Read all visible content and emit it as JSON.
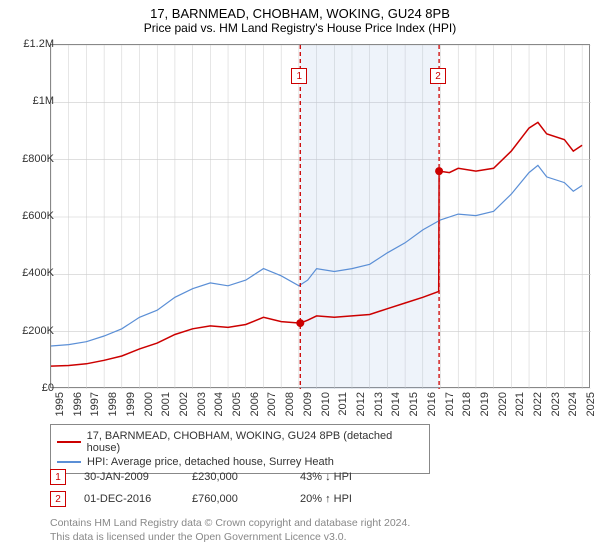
{
  "title": "17, BARNMEAD, CHOBHAM, WOKING, GU24 8PB",
  "subtitle": "Price paid vs. HM Land Registry's House Price Index (HPI)",
  "chart": {
    "type": "line",
    "background_color": "#ffffff",
    "grid_color": "#cccccc",
    "border_color": "#888888",
    "y_axis": {
      "min": 0,
      "max": 1200000,
      "step": 200000,
      "labels": [
        "£0",
        "£200K",
        "£400K",
        "£600K",
        "£800K",
        "£1M",
        "£1.2M"
      ]
    },
    "x_axis": {
      "min": 1995,
      "max": 2025.5,
      "ticks": [
        1995,
        1996,
        1997,
        1998,
        1999,
        2000,
        2001,
        2002,
        2003,
        2004,
        2005,
        2006,
        2007,
        2008,
        2009,
        2010,
        2011,
        2012,
        2013,
        2014,
        2015,
        2016,
        2017,
        2018,
        2019,
        2020,
        2021,
        2022,
        2023,
        2024,
        2025
      ]
    },
    "shaded_region": {
      "x_start": 2009.08,
      "x_end": 2016.92,
      "color": "rgba(160,190,230,0.18)"
    },
    "markers": [
      {
        "num": "1",
        "x": 2009.08,
        "y": 230000,
        "color": "#cc0000"
      },
      {
        "num": "2",
        "x": 2016.92,
        "y": 760000,
        "color": "#cc0000"
      }
    ],
    "series": [
      {
        "name": "property",
        "label": "17, BARNMEAD, CHOBHAM, WOKING, GU24 8PB (detached house)",
        "color": "#cc0000",
        "line_width": 1.5,
        "points": [
          [
            1995,
            80000
          ],
          [
            1996,
            82000
          ],
          [
            1997,
            88000
          ],
          [
            1998,
            100000
          ],
          [
            1999,
            115000
          ],
          [
            2000,
            140000
          ],
          [
            2001,
            160000
          ],
          [
            2002,
            190000
          ],
          [
            2003,
            210000
          ],
          [
            2004,
            220000
          ],
          [
            2005,
            215000
          ],
          [
            2006,
            225000
          ],
          [
            2007,
            250000
          ],
          [
            2008,
            235000
          ],
          [
            2009.08,
            230000
          ],
          [
            2009.5,
            240000
          ],
          [
            2010,
            255000
          ],
          [
            2011,
            250000
          ],
          [
            2012,
            255000
          ],
          [
            2013,
            260000
          ],
          [
            2014,
            280000
          ],
          [
            2015,
            300000
          ],
          [
            2016,
            320000
          ],
          [
            2016.9,
            340000
          ],
          [
            2016.92,
            760000
          ],
          [
            2017.5,
            755000
          ],
          [
            2018,
            770000
          ],
          [
            2019,
            760000
          ],
          [
            2020,
            770000
          ],
          [
            2021,
            830000
          ],
          [
            2022,
            910000
          ],
          [
            2022.5,
            930000
          ],
          [
            2023,
            890000
          ],
          [
            2024,
            870000
          ],
          [
            2024.5,
            830000
          ],
          [
            2025,
            850000
          ]
        ]
      },
      {
        "name": "hpi",
        "label": "HPI: Average price, detached house, Surrey Heath",
        "color": "#5b8fd6",
        "line_width": 1.2,
        "points": [
          [
            1995,
            150000
          ],
          [
            1996,
            155000
          ],
          [
            1997,
            165000
          ],
          [
            1998,
            185000
          ],
          [
            1999,
            210000
          ],
          [
            2000,
            250000
          ],
          [
            2001,
            275000
          ],
          [
            2002,
            320000
          ],
          [
            2003,
            350000
          ],
          [
            2004,
            370000
          ],
          [
            2005,
            360000
          ],
          [
            2006,
            380000
          ],
          [
            2007,
            420000
          ],
          [
            2008,
            395000
          ],
          [
            2009,
            360000
          ],
          [
            2009.5,
            380000
          ],
          [
            2010,
            420000
          ],
          [
            2011,
            410000
          ],
          [
            2012,
            420000
          ],
          [
            2013,
            435000
          ],
          [
            2014,
            475000
          ],
          [
            2015,
            510000
          ],
          [
            2016,
            555000
          ],
          [
            2017,
            590000
          ],
          [
            2018,
            610000
          ],
          [
            2019,
            605000
          ],
          [
            2020,
            620000
          ],
          [
            2021,
            680000
          ],
          [
            2022,
            755000
          ],
          [
            2022.5,
            780000
          ],
          [
            2023,
            740000
          ],
          [
            2024,
            720000
          ],
          [
            2024.5,
            690000
          ],
          [
            2025,
            710000
          ]
        ]
      }
    ]
  },
  "legend": {
    "rows": [
      {
        "color": "#cc0000",
        "label": "17, BARNMEAD, CHOBHAM, WOKING, GU24 8PB (detached house)"
      },
      {
        "color": "#5b8fd6",
        "label": "HPI: Average price, detached house, Surrey Heath"
      }
    ]
  },
  "marker_rows": [
    {
      "num": "1",
      "color": "#cc0000",
      "date": "30-JAN-2009",
      "price": "£230,000",
      "delta": "43% ↓ HPI"
    },
    {
      "num": "2",
      "color": "#cc0000",
      "date": "01-DEC-2016",
      "price": "£760,000",
      "delta": "20% ↑ HPI"
    }
  ],
  "attrib": {
    "line1": "Contains HM Land Registry data © Crown copyright and database right 2024.",
    "line2": "This data is licensed under the Open Government Licence v3.0."
  }
}
